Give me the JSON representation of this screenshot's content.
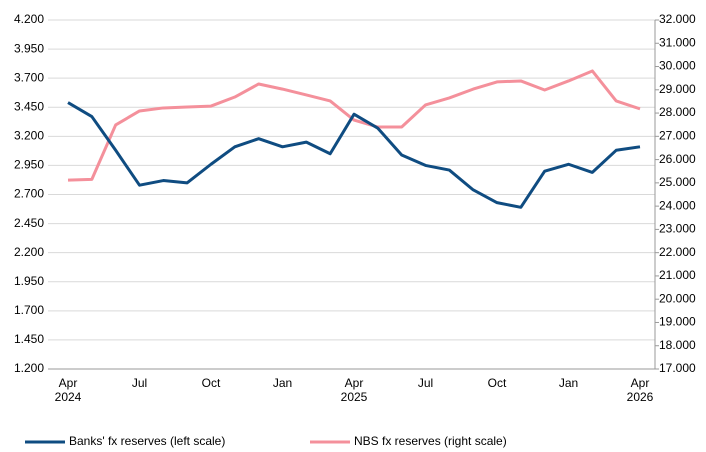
{
  "chart_data": {
    "type": "line",
    "categories": [
      "Apr\n2024",
      null,
      null,
      "Jul",
      null,
      null,
      "Oct",
      null,
      null,
      "Jan",
      null,
      null,
      "Apr\n2025",
      null,
      null,
      "Jul",
      null,
      null,
      "Oct",
      null,
      null,
      "Jan",
      null,
      null,
      "Apr\n2026"
    ],
    "series": [
      {
        "name": "Banks' fx reserves (left scale)",
        "color": "#0f4c81",
        "axis": "y",
        "values": [
          3490,
          3370,
          3080,
          2780,
          2820,
          2800,
          2960,
          3110,
          3180,
          3110,
          3150,
          3050,
          3390,
          3270,
          3040,
          2950,
          2910,
          2740,
          2630,
          2590,
          2900,
          2960,
          2890,
          3080,
          3110
        ]
      },
      {
        "name": "NBS fx reserves (right scale)",
        "color": "#f4909b",
        "axis": "y2",
        "values": [
          25120,
          25150,
          27490,
          28090,
          28220,
          28260,
          28300,
          28690,
          29250,
          29030,
          28780,
          28520,
          27700,
          27400,
          27400,
          28350,
          28650,
          29030,
          29340,
          29380,
          28990,
          29380,
          29810,
          28520,
          28180
        ]
      }
    ],
    "ylim": [
      1200,
      4200
    ],
    "yticks": [
      {
        "value": 1200,
        "label": "1.200"
      },
      {
        "value": 1450,
        "label": "1.450"
      },
      {
        "value": 1700,
        "label": "1.700"
      },
      {
        "value": 1950,
        "label": "1.950"
      },
      {
        "value": 2200,
        "label": "2.200"
      },
      {
        "value": 2450,
        "label": "2.450"
      },
      {
        "value": 2700,
        "label": "2.700"
      },
      {
        "value": 2950,
        "label": "2.950"
      },
      {
        "value": 3200,
        "label": "3.200"
      },
      {
        "value": 3450,
        "label": "3.450"
      },
      {
        "value": 3700,
        "label": "3.700"
      },
      {
        "value": 3950,
        "label": "3.950"
      },
      {
        "value": 4200,
        "label": "4.200"
      }
    ],
    "y2lim": [
      17000,
      32000
    ],
    "y2ticks": [
      {
        "value": 17000,
        "label": "17.000"
      },
      {
        "value": 18000,
        "label": "18.000"
      },
      {
        "value": 19000,
        "label": "19.000"
      },
      {
        "value": 20000,
        "label": "20.000"
      },
      {
        "value": 21000,
        "label": "21.000"
      },
      {
        "value": 22000,
        "label": "22.000"
      },
      {
        "value": 23000,
        "label": "23.000"
      },
      {
        "value": 24000,
        "label": "24.000"
      },
      {
        "value": 25000,
        "label": "25.000"
      },
      {
        "value": 26000,
        "label": "26.000"
      },
      {
        "value": 27000,
        "label": "27.000"
      },
      {
        "value": 28000,
        "label": "28.000"
      },
      {
        "value": 29000,
        "label": "29.000"
      },
      {
        "value": 30000,
        "label": "30.000"
      },
      {
        "value": 31000,
        "label": "31.000"
      },
      {
        "value": 32000,
        "label": "32.000"
      }
    ],
    "grid": true,
    "legend": "bottom"
  }
}
